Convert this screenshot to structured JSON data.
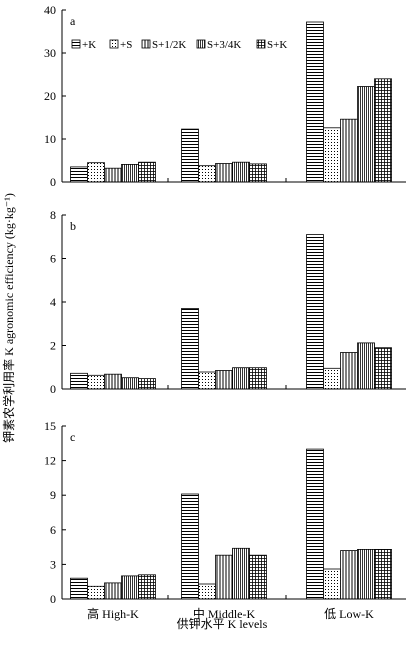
{
  "chart_data": {
    "type": "bar",
    "ylabel": "钾素农学利用率 K agronomic efficiency (kg·kg⁻¹)",
    "xlabel": "供钾水平 K levels",
    "categories": [
      "高 High-K",
      "中 Middle-K",
      "低 Low-K"
    ],
    "legend": [
      "+K",
      "+S",
      "S+1/2K",
      "S+3/4K",
      "S+K"
    ],
    "legend_position": "top",
    "grid": false,
    "panels": [
      {
        "label": "a",
        "ylim": [
          0,
          40
        ],
        "yticks": [
          "0",
          "10",
          "20",
          "30",
          "40"
        ],
        "series": [
          {
            "name": "+K",
            "values": [
              3.5,
              12.3,
              37.2
            ]
          },
          {
            "name": "+S",
            "values": [
              4.5,
              3.8,
              12.6
            ]
          },
          {
            "name": "S+1/2K",
            "values": [
              3.2,
              4.3,
              14.6
            ]
          },
          {
            "name": "S+3/4K",
            "values": [
              4.1,
              4.6,
              22.2
            ]
          },
          {
            "name": "S+K",
            "values": [
              4.6,
              4.2,
              24.0
            ]
          }
        ]
      },
      {
        "label": "b",
        "ylim": [
          0,
          8
        ],
        "yticks": [
          "0",
          "2",
          "4",
          "6",
          "8"
        ],
        "series": [
          {
            "name": "+K",
            "values": [
              0.72,
              3.7,
              7.1
            ]
          },
          {
            "name": "+S",
            "values": [
              0.63,
              0.78,
              0.95
            ]
          },
          {
            "name": "S+1/2K",
            "values": [
              0.68,
              0.85,
              1.68
            ]
          },
          {
            "name": "S+3/4K",
            "values": [
              0.52,
              0.98,
              2.12
            ]
          },
          {
            "name": "S+K",
            "values": [
              0.48,
              0.98,
              1.9
            ]
          }
        ]
      },
      {
        "label": "c",
        "ylim": [
          0,
          15
        ],
        "yticks": [
          "0",
          "3",
          "6",
          "9",
          "12",
          "15"
        ],
        "series": [
          {
            "name": "+K",
            "values": [
              1.8,
              9.1,
              13.0
            ]
          },
          {
            "name": "+S",
            "values": [
              1.1,
              1.3,
              2.6
            ]
          },
          {
            "name": "S+1/2K",
            "values": [
              1.4,
              3.8,
              4.2
            ]
          },
          {
            "name": "S+3/4K",
            "values": [
              2.0,
              4.4,
              4.3
            ]
          },
          {
            "name": "S+K",
            "values": [
              2.1,
              3.8,
              4.3
            ]
          }
        ]
      }
    ]
  }
}
